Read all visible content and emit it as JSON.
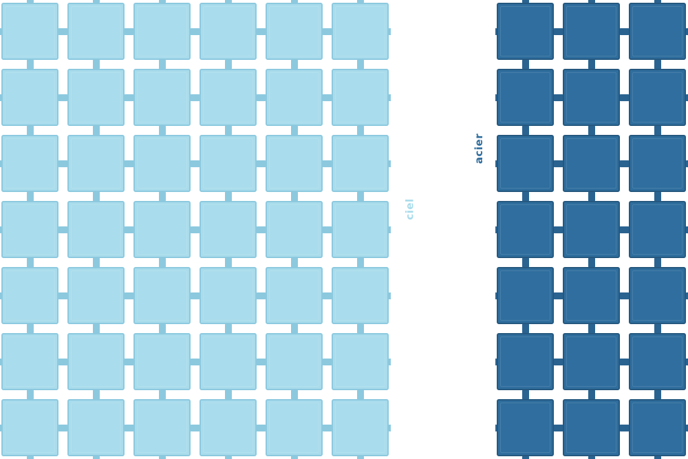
{
  "swatches": [
    {
      "id": "ciel",
      "label": "ciel",
      "tile_color": "#a9dcec",
      "tile_border_color": "#8cc9df",
      "connector_color": "#8cc9df",
      "label_color": "#a9dcec",
      "columns": 6,
      "rows": 7
    },
    {
      "id": "acier",
      "label": "acier",
      "tile_color": "#2f6e9e",
      "tile_border_color": "#25587f",
      "connector_color": "#2a6390",
      "label_color": "#2f6e9e",
      "columns": 3,
      "rows": 7
    }
  ]
}
